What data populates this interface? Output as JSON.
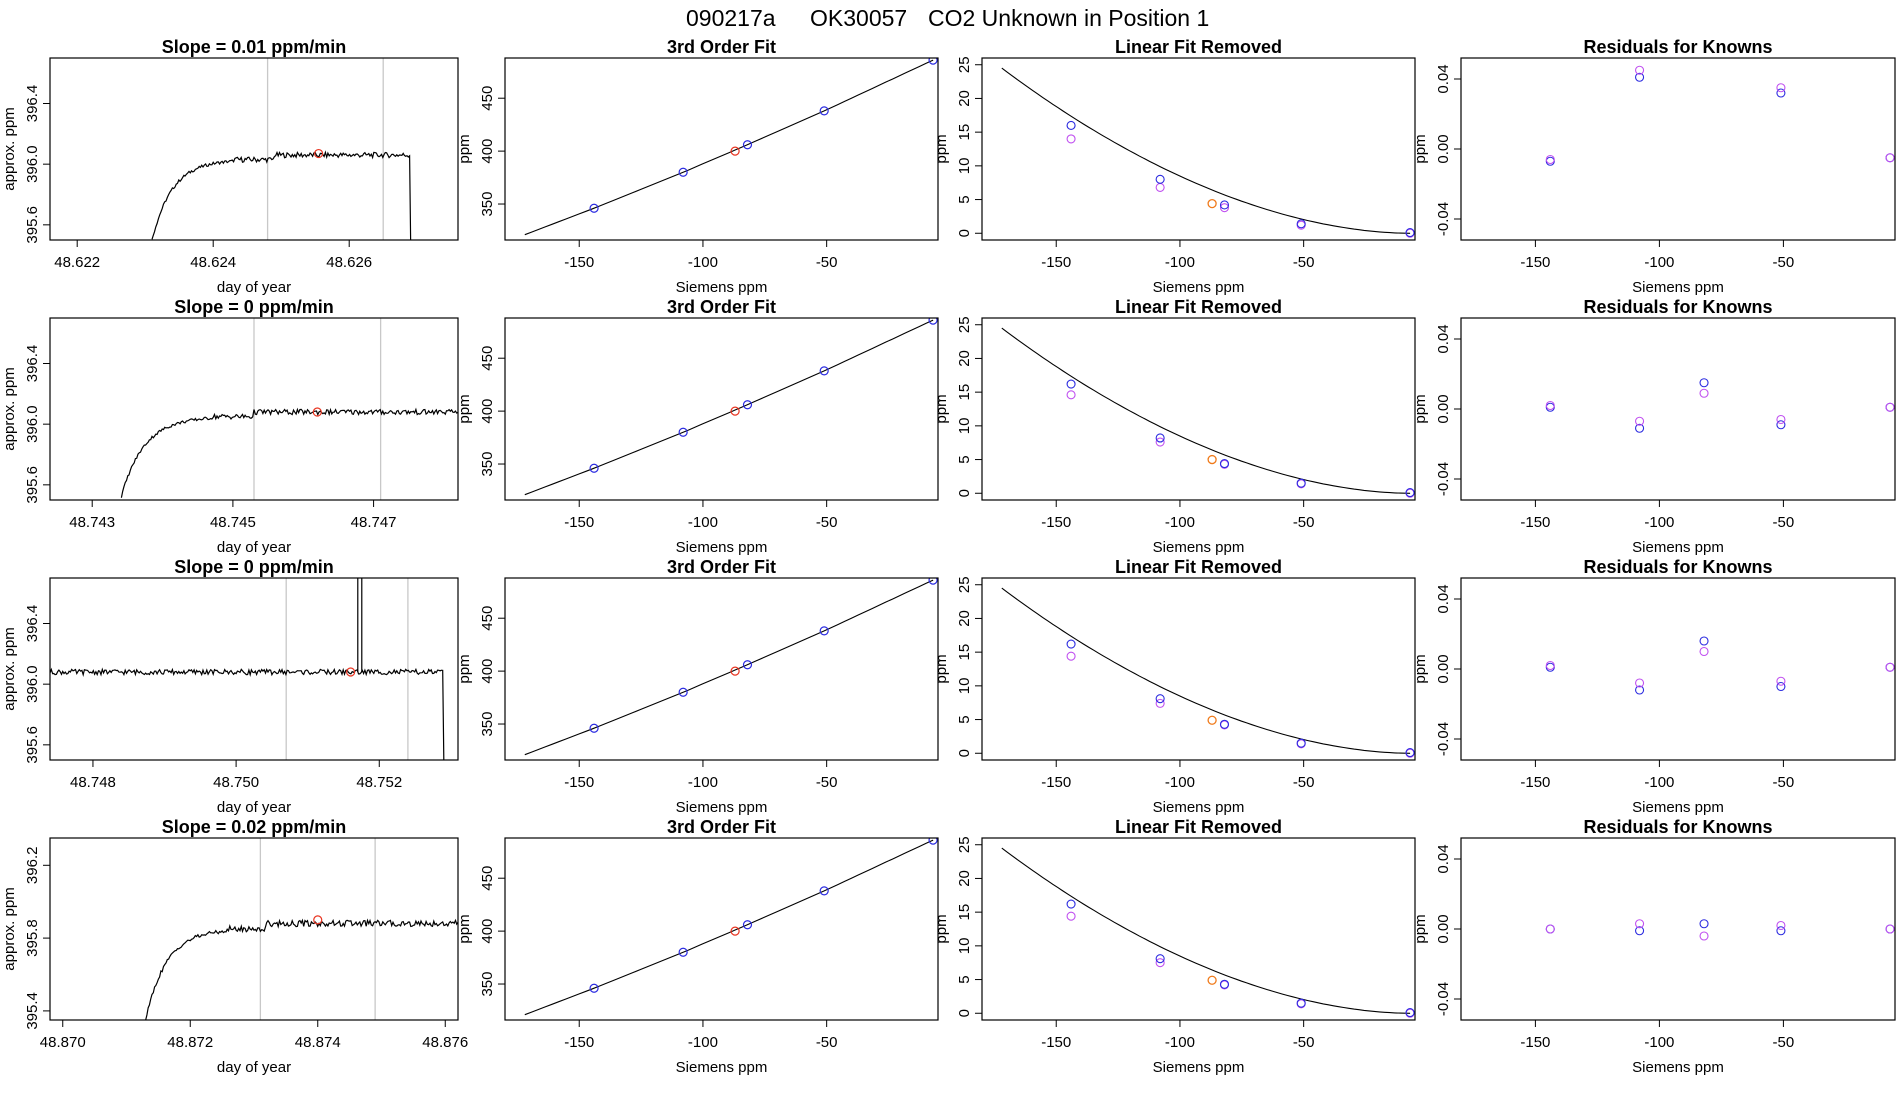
{
  "page": {
    "title_run": "090217a",
    "title_tank": "OK30057",
    "title_desc": "CO2 Unknown in Position  1"
  },
  "colors": {
    "line": "#000000",
    "grid_line": "#c8c8c8",
    "unknown": "#e8331f",
    "unknown_fit": "#f07a1a",
    "known": "#2b2be0",
    "known_fit": "#c050f0"
  },
  "chart_data": [
    {
      "id": "r1-trace",
      "type": "line",
      "title": "Slope =  0.01  ppm/min",
      "xlabel": "day of year",
      "ylabel": "approx. ppm",
      "xlim": [
        48.6216,
        48.6276
      ],
      "ylim": [
        395.5,
        396.7
      ],
      "xticks": [
        48.622,
        48.624,
        48.626
      ],
      "xtick_labels": [
        "48.622",
        "48.624",
        "48.626"
      ],
      "yticks": [
        395.6,
        396.0,
        396.4
      ],
      "ytick_labels": [
        "395.6",
        "396.0",
        "396.4"
      ],
      "vlines": [
        48.6248,
        48.6265
      ],
      "marker": {
        "x": 48.62555,
        "y": 396.07
      },
      "trace": {
        "rise_start": 48.6231,
        "plateau_start": 48.6243,
        "plateau": 396.06,
        "slope": 0.01,
        "drop": 48.6269
      }
    },
    {
      "id": "r1-fit",
      "type": "scatter",
      "title": "3rd Order Fit",
      "xlabel": "Siemens ppm",
      "ylabel": "ppm",
      "xlim": [
        -180,
        -5
      ],
      "ylim": [
        316,
        488
      ],
      "xticks": [
        -150,
        -100,
        -50
      ],
      "xtick_labels": [
        "-150",
        "-100",
        "-50"
      ],
      "yticks": [
        350,
        400,
        450
      ],
      "ytick_labels": [
        "350",
        "400",
        "450"
      ]
    },
    {
      "id": "r1-lin",
      "type": "scatter",
      "title": "Linear Fit Removed",
      "xlabel": "Siemens ppm",
      "ylabel": "ppm",
      "xlim": [
        -180,
        -5
      ],
      "ylim": [
        -1,
        26
      ],
      "xticks": [
        -150,
        -100,
        -50
      ],
      "xtick_labels": [
        "-150",
        "-100",
        "-50"
      ],
      "yticks": [
        0,
        5,
        10,
        15,
        20,
        25
      ],
      "ytick_labels": [
        "0",
        "5",
        "10",
        "15",
        "20",
        "25"
      ]
    },
    {
      "id": "r1-res",
      "type": "scatter",
      "title": "Residuals for Knowns",
      "xlabel": "Siemens ppm",
      "ylabel": "ppm",
      "xlim": [
        -180,
        -5
      ],
      "ylim": [
        -0.052,
        0.052
      ],
      "xticks": [
        -150,
        -100,
        -50
      ],
      "xtick_labels": [
        "-150",
        "-100",
        "-50"
      ],
      "yticks": [
        -0.04,
        0.0,
        0.04
      ],
      "ytick_labels": [
        "-0.04",
        "0.00",
        "0.04"
      ],
      "series": [
        {
          "x": [
            -144,
            -108,
            -51,
            -7
          ],
          "y": [
            -0.007,
            0.041,
            0.032,
            -0.005
          ]
        },
        {
          "x": [
            -144,
            -108,
            -51,
            -7
          ],
          "y": [
            -0.006,
            0.045,
            0.035,
            -0.005
          ]
        }
      ]
    },
    {
      "id": "r2-trace",
      "type": "line",
      "title": "Slope =  0  ppm/min",
      "xlabel": "day of year",
      "ylabel": "approx. ppm",
      "xlim": [
        48.7424,
        48.7482
      ],
      "ylim": [
        395.5,
        396.7
      ],
      "xticks": [
        48.743,
        48.745,
        48.747
      ],
      "xtick_labels": [
        "48.743",
        "48.745",
        "48.747"
      ],
      "yticks": [
        395.6,
        396.0,
        396.4
      ],
      "ytick_labels": [
        "395.6",
        "396.0",
        "396.4"
      ],
      "vlines": [
        48.7453,
        48.7471
      ],
      "marker": {
        "x": 48.7462,
        "y": 396.08
      },
      "trace": {
        "rise_start": 48.7434,
        "plateau_start": 48.7447,
        "plateau": 396.08,
        "slope": 0,
        "drop": null
      }
    },
    {
      "id": "r2-fit",
      "type": "scatter",
      "title": "3rd Order Fit",
      "xlabel": "Siemens ppm",
      "ylabel": "ppm",
      "xlim": [
        -180,
        -5
      ],
      "ylim": [
        316,
        488
      ],
      "xticks": [
        -150,
        -100,
        -50
      ],
      "xtick_labels": [
        "-150",
        "-100",
        "-50"
      ],
      "yticks": [
        350,
        400,
        450
      ],
      "ytick_labels": [
        "350",
        "400",
        "450"
      ]
    },
    {
      "id": "r2-lin",
      "type": "scatter",
      "title": "Linear Fit Removed",
      "xlabel": "Siemens ppm",
      "ylabel": "ppm",
      "xlim": [
        -180,
        -5
      ],
      "ylim": [
        -1,
        26
      ],
      "xticks": [
        -150,
        -100,
        -50
      ],
      "xtick_labels": [
        "-150",
        "-100",
        "-50"
      ],
      "yticks": [
        0,
        5,
        10,
        15,
        20,
        25
      ],
      "ytick_labels": [
        "0",
        "5",
        "10",
        "15",
        "20",
        "25"
      ]
    },
    {
      "id": "r2-res",
      "type": "scatter",
      "title": "Residuals for Knowns",
      "xlabel": "Siemens ppm",
      "ylabel": "ppm",
      "xlim": [
        -180,
        -5
      ],
      "ylim": [
        -0.052,
        0.052
      ],
      "xticks": [
        -150,
        -100,
        -50
      ],
      "xtick_labels": [
        "-150",
        "-100",
        "-50"
      ],
      "yticks": [
        -0.04,
        0.0,
        0.04
      ],
      "ytick_labels": [
        "-0.04",
        "0.00",
        "0.04"
      ],
      "series": [
        {
          "x": [
            -144,
            -108,
            -82,
            -51,
            -7
          ],
          "y": [
            0.001,
            -0.011,
            0.015,
            -0.009,
            0.001
          ]
        },
        {
          "x": [
            -144,
            -108,
            -82,
            -51,
            -7
          ],
          "y": [
            0.002,
            -0.007,
            0.009,
            -0.006,
            0.001
          ]
        }
      ]
    },
    {
      "id": "r3-trace",
      "type": "line",
      "title": "Slope =  0  ppm/min",
      "xlabel": "day of year",
      "ylabel": "approx. ppm",
      "xlim": [
        48.7474,
        48.7531
      ],
      "ylim": [
        395.5,
        396.7
      ],
      "xticks": [
        48.748,
        48.75,
        48.752
      ],
      "xtick_labels": [
        "48.748",
        "48.750",
        "48.752"
      ],
      "yticks": [
        395.6,
        396.0,
        396.4
      ],
      "ytick_labels": [
        "395.6",
        "396.0",
        "396.4"
      ],
      "vlines": [
        48.7507,
        48.7524
      ],
      "marker": {
        "x": 48.7516,
        "y": 396.08
      },
      "trace": {
        "rise_start": null,
        "plateau_start": 48.7476,
        "plateau": 396.08,
        "slope": 0,
        "drop": 48.7529,
        "spike": 48.7517
      }
    },
    {
      "id": "r3-fit",
      "type": "scatter",
      "title": "3rd Order Fit",
      "xlabel": "Siemens ppm",
      "ylabel": "ppm",
      "xlim": [
        -180,
        -5
      ],
      "ylim": [
        316,
        488
      ],
      "xticks": [
        -150,
        -100,
        -50
      ],
      "xtick_labels": [
        "-150",
        "-100",
        "-50"
      ],
      "yticks": [
        350,
        400,
        450
      ],
      "ytick_labels": [
        "350",
        "400",
        "450"
      ]
    },
    {
      "id": "r3-lin",
      "type": "scatter",
      "title": "Linear Fit Removed",
      "xlabel": "Siemens ppm",
      "ylabel": "ppm",
      "xlim": [
        -180,
        -5
      ],
      "ylim": [
        -1,
        26
      ],
      "xticks": [
        -150,
        -100,
        -50
      ],
      "xtick_labels": [
        "-150",
        "-100",
        "-50"
      ],
      "yticks": [
        0,
        5,
        10,
        15,
        20,
        25
      ],
      "ytick_labels": [
        "0",
        "5",
        "10",
        "15",
        "20",
        "25"
      ]
    },
    {
      "id": "r3-res",
      "type": "scatter",
      "title": "Residuals for Knowns",
      "xlabel": "Siemens ppm",
      "ylabel": "ppm",
      "xlim": [
        -180,
        -5
      ],
      "ylim": [
        -0.052,
        0.052
      ],
      "xticks": [
        -150,
        -100,
        -50
      ],
      "xtick_labels": [
        "-150",
        "-100",
        "-50"
      ],
      "yticks": [
        -0.04,
        0.0,
        0.04
      ],
      "ytick_labels": [
        "-0.04",
        "0.00",
        "0.04"
      ],
      "series": [
        {
          "x": [
            -144,
            -108,
            -82,
            -51,
            -7
          ],
          "y": [
            0.001,
            -0.012,
            0.016,
            -0.01,
            0.001
          ]
        },
        {
          "x": [
            -144,
            -108,
            -82,
            -51,
            -7
          ],
          "y": [
            0.002,
            -0.008,
            0.01,
            -0.007,
            0.001
          ]
        }
      ]
    },
    {
      "id": "r4-trace",
      "type": "line",
      "title": "Slope =  0.02  ppm/min",
      "xlabel": "day of year",
      "ylabel": "approx. ppm",
      "xlim": [
        48.8698,
        48.8762
      ],
      "ylim": [
        395.35,
        396.35
      ],
      "xticks": [
        48.87,
        48.872,
        48.874,
        48.876
      ],
      "xtick_labels": [
        "48.870",
        "48.872",
        "48.874",
        "48.876"
      ],
      "yticks": [
        395.4,
        395.8,
        396.2
      ],
      "ytick_labels": [
        "395.4",
        "395.8",
        "396.2"
      ],
      "vlines": [
        48.8731,
        48.8749
      ],
      "marker": {
        "x": 48.874,
        "y": 395.9
      },
      "trace": {
        "rise_start": 48.8713,
        "plateau_start": 48.8726,
        "plateau": 395.88,
        "slope": 0.02,
        "drop": null
      }
    },
    {
      "id": "r4-fit",
      "type": "scatter",
      "title": "3rd Order Fit",
      "xlabel": "Siemens ppm",
      "ylabel": "ppm",
      "xlim": [
        -180,
        -5
      ],
      "ylim": [
        316,
        488
      ],
      "xticks": [
        -150,
        -100,
        -50
      ],
      "xtick_labels": [
        "-150",
        "-100",
        "-50"
      ],
      "yticks": [
        350,
        400,
        450
      ],
      "ytick_labels": [
        "350",
        "400",
        "450"
      ]
    },
    {
      "id": "r4-lin",
      "type": "scatter",
      "title": "Linear Fit Removed",
      "xlabel": "Siemens ppm",
      "ylabel": "ppm",
      "xlim": [
        -180,
        -5
      ],
      "ylim": [
        -1,
        26
      ],
      "xticks": [
        -150,
        -100,
        -50
      ],
      "xtick_labels": [
        "-150",
        "-100",
        "-50"
      ],
      "yticks": [
        0,
        5,
        10,
        15,
        20,
        25
      ],
      "ytick_labels": [
        "0",
        "5",
        "10",
        "15",
        "20",
        "25"
      ]
    },
    {
      "id": "r4-res",
      "type": "scatter",
      "title": "Residuals for Knowns",
      "xlabel": "Siemens ppm",
      "ylabel": "ppm",
      "xlim": [
        -180,
        -5
      ],
      "ylim": [
        -0.052,
        0.052
      ],
      "xticks": [
        -150,
        -100,
        -50
      ],
      "xtick_labels": [
        "-150",
        "-100",
        "-50"
      ],
      "yticks": [
        -0.04,
        0.0,
        0.04
      ],
      "ytick_labels": [
        "-0.04",
        "0.00",
        "0.04"
      ],
      "series": [
        {
          "x": [
            -144,
            -108,
            -82,
            -51,
            -7
          ],
          "y": [
            0.0,
            -0.001,
            0.003,
            -0.001,
            0.0
          ]
        },
        {
          "x": [
            -144,
            -108,
            -82,
            -51,
            -7
          ],
          "y": [
            0.0,
            0.003,
            -0.004,
            0.002,
            0.0
          ]
        }
      ]
    }
  ],
  "calibration": {
    "siemens_x": [
      -172,
      -144,
      -108,
      -82,
      -51,
      -7
    ],
    "fit_y": [
      321,
      346,
      380,
      406,
      438,
      486
    ],
    "known_x": [
      -144,
      -108,
      -82,
      -51,
      -7
    ],
    "unknown_x": -87,
    "unknown_fit_y": 400,
    "linear_removed_known": [
      [
        16.0,
        8.0,
        4.2,
        1.4,
        0.1
      ],
      [
        16.2,
        8.2,
        4.4,
        1.5,
        0.1
      ],
      [
        16.2,
        8.1,
        4.3,
        1.5,
        0.1
      ],
      [
        16.2,
        8.1,
        4.3,
        1.5,
        0.1
      ]
    ],
    "linear_removed_known_alt": [
      [
        14.0,
        6.8,
        3.8,
        1.2,
        0.0
      ],
      [
        14.6,
        7.6,
        4.3,
        1.4,
        0.0
      ],
      [
        14.4,
        7.4,
        4.2,
        1.4,
        0.0
      ],
      [
        14.4,
        7.5,
        4.2,
        1.4,
        0.0
      ]
    ],
    "linear_removed_unknown": [
      4.4,
      5.0,
      4.9,
      4.9
    ]
  }
}
